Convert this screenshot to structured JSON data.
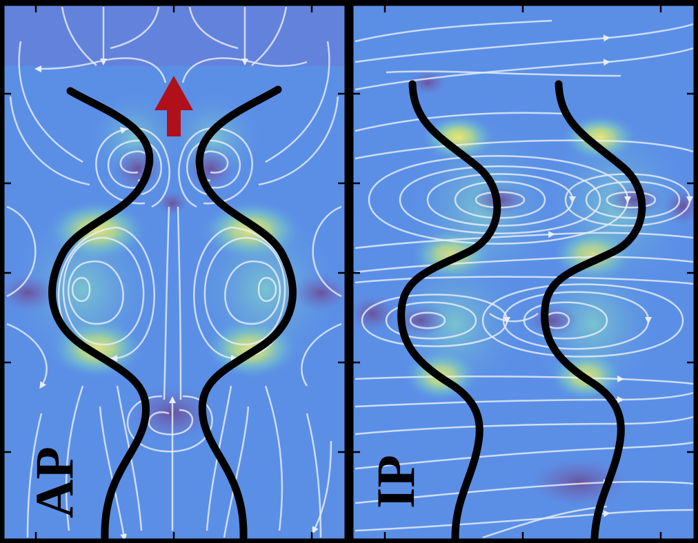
{
  "panels": [
    {
      "id": "ap",
      "label": "AP"
    },
    {
      "id": "ip",
      "label": "IP"
    }
  ],
  "colors": {
    "background_flow": "#5b8fe6",
    "high_stress": "#fff06a",
    "mid_stress": "#7fd8c0",
    "vortex_core": "#6a4f9a",
    "streamline": "#e8eef8",
    "filament": "#000000",
    "motion_arrow": "#b0101a",
    "frame": "#000000"
  },
  "icons": {
    "motion_direction": "up-arrow-icon",
    "streamline_direction": "triangle-arrowhead-icon"
  }
}
